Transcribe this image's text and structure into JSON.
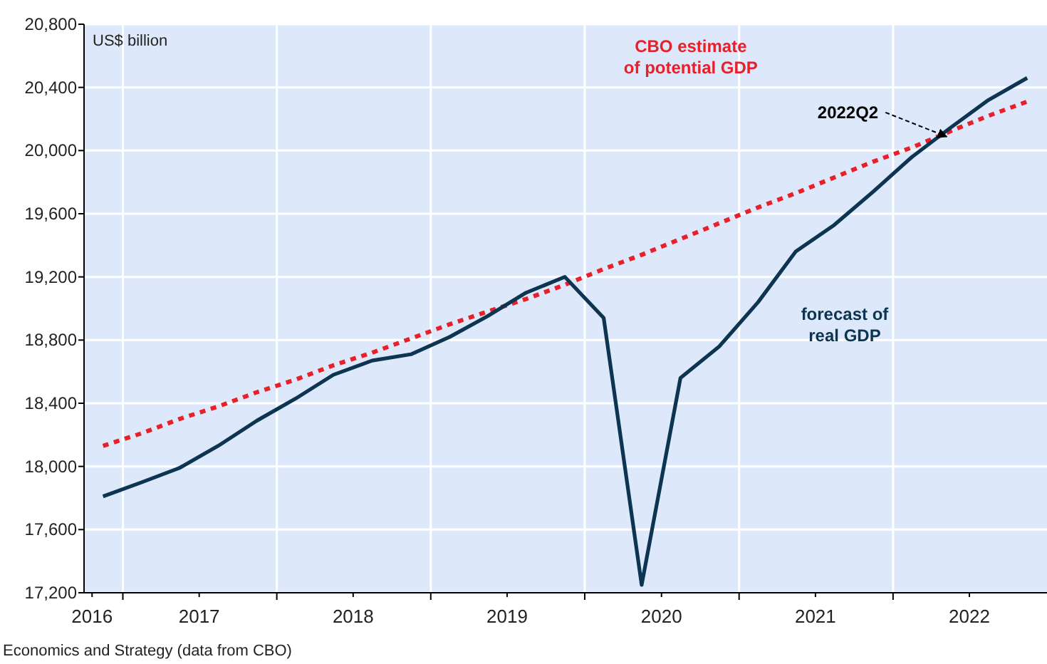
{
  "chart_data": {
    "type": "line",
    "ylabel": "US$ billion",
    "x": [
      "2016-11-15",
      "2017-02-15",
      "2017-05-15",
      "2017-08-15",
      "2017-11-15",
      "2018-02-15",
      "2018-05-15",
      "2018-08-15",
      "2018-11-15",
      "2019-02-15",
      "2019-05-15",
      "2019-08-15",
      "2019-11-15",
      "2020-02-15",
      "2020-05-15",
      "2020-08-15",
      "2020-11-15",
      "2021-02-15",
      "2021-05-15",
      "2021-08-15",
      "2021-11-15",
      "2022-02-15",
      "2022-05-15",
      "2022-08-15",
      "2022-11-15"
    ],
    "series": [
      {
        "name": "CBO estimate\nof potential GDP",
        "color": "#e8202a",
        "line_style": "dotted",
        "values": [
          18130,
          18210,
          18300,
          18380,
          18470,
          18550,
          18640,
          18720,
          18810,
          18900,
          18980,
          19060,
          19150,
          19250,
          19340,
          19440,
          19540,
          19640,
          19730,
          19830,
          19930,
          20020,
          20120,
          20220,
          20310
        ]
      },
      {
        "name": "forecast of\nreal GDP",
        "color": "#0d3451",
        "line_style": "solid",
        "values": [
          17810,
          17900,
          17990,
          18130,
          18290,
          18430,
          18580,
          18670,
          18710,
          18820,
          18950,
          19100,
          19200,
          18940,
          17250,
          18560,
          18760,
          19040,
          19360,
          19530,
          19740,
          19960,
          20140,
          20320,
          20460
        ]
      }
    ],
    "xlim": [
      "2016-10-01",
      "2023-01-01"
    ],
    "xticks": [
      {
        "value": "2016-10-20",
        "label": "2016"
      },
      {
        "value": "2017-01-01",
        "label": null
      },
      {
        "value": "2017-07-01",
        "label": "2017"
      },
      {
        "value": "2018-01-01",
        "label": null
      },
      {
        "value": "2018-07-01",
        "label": "2018"
      },
      {
        "value": "2019-01-01",
        "label": null
      },
      {
        "value": "2019-07-01",
        "label": "2019"
      },
      {
        "value": "2020-01-01",
        "label": null
      },
      {
        "value": "2020-07-01",
        "label": "2020"
      },
      {
        "value": "2021-01-01",
        "label": null
      },
      {
        "value": "2021-07-01",
        "label": "2021"
      },
      {
        "value": "2022-01-01",
        "label": null
      },
      {
        "value": "2022-07-01",
        "label": "2022"
      }
    ],
    "ylim": [
      17200,
      20800
    ],
    "yticks": [
      {
        "value": 17200,
        "label": "17,200"
      },
      {
        "value": 17600,
        "label": "17,600"
      },
      {
        "value": 18000,
        "label": "18,000"
      },
      {
        "value": 18400,
        "label": "18,400"
      },
      {
        "value": 18800,
        "label": "18,800"
      },
      {
        "value": 19200,
        "label": "19,200"
      },
      {
        "value": 19600,
        "label": "19,600"
      },
      {
        "value": 20000,
        "label": "20,000"
      },
      {
        "value": 20400,
        "label": "20,400"
      },
      {
        "value": 20800,
        "label": "20,800"
      }
    ],
    "grid": true,
    "legend": false,
    "marker": "none",
    "annotations": [
      {
        "text": "2022Q2",
        "x": "2022-05-15",
        "y": 20070
      },
      "Economics and Strategy (data from CBO)"
    ]
  }
}
